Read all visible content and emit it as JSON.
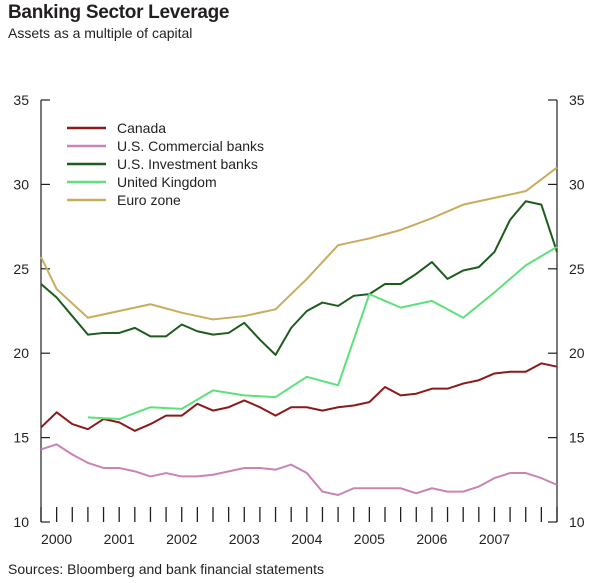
{
  "header": {
    "title": "Banking Sector Leverage",
    "subtitle": "Assets as a multiple of capital"
  },
  "footer": {
    "source": "Sources: Bloomberg and bank financial statements"
  },
  "chart_data": {
    "type": "line",
    "title": "Banking Sector Leverage",
    "subtitle": "Assets as a multiple of capital",
    "xlabel": "",
    "ylabel": "",
    "xlim": [
      1999.75,
      2008.0
    ],
    "ylim": [
      10,
      35
    ],
    "y_ticks": [
      10,
      15,
      20,
      25,
      30,
      35
    ],
    "x_tick_labels": [
      {
        "x": 2000.0,
        "label": "2000"
      },
      {
        "x": 2001.0,
        "label": "2001"
      },
      {
        "x": 2002.0,
        "label": "2002"
      },
      {
        "x": 2003.0,
        "label": "2003"
      },
      {
        "x": 2004.0,
        "label": "2004"
      },
      {
        "x": 2005.0,
        "label": "2005"
      },
      {
        "x": 2006.0,
        "label": "2006"
      },
      {
        "x": 2007.0,
        "label": "2007"
      }
    ],
    "legend_position": "top-left",
    "grid": false,
    "series": [
      {
        "name": "Canada",
        "color": "#8b1a1a",
        "points": [
          [
            1999.75,
            15.6
          ],
          [
            2000.0,
            16.5
          ],
          [
            2000.25,
            15.8
          ],
          [
            2000.5,
            15.5
          ],
          [
            2000.75,
            16.1
          ],
          [
            2001.0,
            15.9
          ],
          [
            2001.25,
            15.4
          ],
          [
            2001.5,
            15.8
          ],
          [
            2001.75,
            16.3
          ],
          [
            2002.0,
            16.3
          ],
          [
            2002.25,
            17.0
          ],
          [
            2002.5,
            16.6
          ],
          [
            2002.75,
            16.8
          ],
          [
            2003.0,
            17.2
          ],
          [
            2003.25,
            16.8
          ],
          [
            2003.5,
            16.3
          ],
          [
            2003.75,
            16.8
          ],
          [
            2004.0,
            16.8
          ],
          [
            2004.25,
            16.6
          ],
          [
            2004.5,
            16.8
          ],
          [
            2004.75,
            16.9
          ],
          [
            2005.0,
            17.1
          ],
          [
            2005.25,
            18.0
          ],
          [
            2005.5,
            17.5
          ],
          [
            2005.75,
            17.6
          ],
          [
            2006.0,
            17.9
          ],
          [
            2006.25,
            17.9
          ],
          [
            2006.5,
            18.2
          ],
          [
            2006.75,
            18.4
          ],
          [
            2007.0,
            18.8
          ],
          [
            2007.25,
            18.9
          ],
          [
            2007.5,
            18.9
          ],
          [
            2007.75,
            19.4
          ],
          [
            2008.0,
            19.2
          ]
        ]
      },
      {
        "name": "U.S. Commercial banks",
        "color": "#c983b5",
        "points": [
          [
            1999.75,
            14.3
          ],
          [
            2000.0,
            14.6
          ],
          [
            2000.25,
            14.0
          ],
          [
            2000.5,
            13.5
          ],
          [
            2000.75,
            13.2
          ],
          [
            2001.0,
            13.2
          ],
          [
            2001.25,
            13.0
          ],
          [
            2001.5,
            12.7
          ],
          [
            2001.75,
            12.9
          ],
          [
            2002.0,
            12.7
          ],
          [
            2002.25,
            12.7
          ],
          [
            2002.5,
            12.8
          ],
          [
            2002.75,
            13.0
          ],
          [
            2003.0,
            13.2
          ],
          [
            2003.25,
            13.2
          ],
          [
            2003.5,
            13.1
          ],
          [
            2003.75,
            13.4
          ],
          [
            2004.0,
            12.9
          ],
          [
            2004.25,
            11.8
          ],
          [
            2004.5,
            11.6
          ],
          [
            2004.75,
            12.0
          ],
          [
            2005.0,
            12.0
          ],
          [
            2005.25,
            12.0
          ],
          [
            2005.5,
            12.0
          ],
          [
            2005.75,
            11.7
          ],
          [
            2006.0,
            12.0
          ],
          [
            2006.25,
            11.8
          ],
          [
            2006.5,
            11.8
          ],
          [
            2006.75,
            12.1
          ],
          [
            2007.0,
            12.6
          ],
          [
            2007.25,
            12.9
          ],
          [
            2007.5,
            12.9
          ],
          [
            2007.75,
            12.6
          ],
          [
            2008.0,
            12.2
          ]
        ]
      },
      {
        "name": "U.S. Investment banks",
        "color": "#1e5c1e",
        "points": [
          [
            1999.75,
            24.1
          ],
          [
            2000.0,
            23.3
          ],
          [
            2000.25,
            22.2
          ],
          [
            2000.5,
            21.1
          ],
          [
            2000.75,
            21.2
          ],
          [
            2001.0,
            21.2
          ],
          [
            2001.25,
            21.5
          ],
          [
            2001.5,
            21.0
          ],
          [
            2001.75,
            21.0
          ],
          [
            2002.0,
            21.7
          ],
          [
            2002.25,
            21.3
          ],
          [
            2002.5,
            21.1
          ],
          [
            2002.75,
            21.2
          ],
          [
            2003.0,
            21.8
          ],
          [
            2003.25,
            20.8
          ],
          [
            2003.5,
            19.9
          ],
          [
            2003.75,
            21.5
          ],
          [
            2004.0,
            22.5
          ],
          [
            2004.25,
            23.0
          ],
          [
            2004.5,
            22.8
          ],
          [
            2004.75,
            23.4
          ],
          [
            2005.0,
            23.5
          ],
          [
            2005.25,
            24.1
          ],
          [
            2005.5,
            24.1
          ],
          [
            2005.75,
            24.7
          ],
          [
            2006.0,
            25.4
          ],
          [
            2006.25,
            24.4
          ],
          [
            2006.5,
            24.9
          ],
          [
            2006.75,
            25.1
          ],
          [
            2007.0,
            26.0
          ],
          [
            2007.25,
            27.9
          ],
          [
            2007.5,
            29.0
          ],
          [
            2007.75,
            28.8
          ],
          [
            2008.0,
            26.0
          ]
        ]
      },
      {
        "name": "United Kingdom",
        "color": "#5fe07a",
        "points": [
          [
            2000.5,
            16.2
          ],
          [
            2001.0,
            16.1
          ],
          [
            2001.5,
            16.8
          ],
          [
            2002.0,
            16.7
          ],
          [
            2002.5,
            17.8
          ],
          [
            2003.0,
            17.5
          ],
          [
            2003.5,
            17.4
          ],
          [
            2004.0,
            18.6
          ],
          [
            2004.5,
            18.1
          ],
          [
            2005.0,
            23.5
          ],
          [
            2005.5,
            22.7
          ],
          [
            2006.0,
            23.1
          ],
          [
            2006.5,
            22.1
          ],
          [
            2007.0,
            23.6
          ],
          [
            2007.5,
            25.2
          ],
          [
            2008.0,
            26.3
          ]
        ]
      },
      {
        "name": "Euro zone",
        "color": "#c9ac5c",
        "points": [
          [
            1999.75,
            25.7
          ],
          [
            2000.0,
            23.8
          ],
          [
            2000.5,
            22.1
          ],
          [
            2001.0,
            22.5
          ],
          [
            2001.5,
            22.9
          ],
          [
            2002.0,
            22.4
          ],
          [
            2002.5,
            22.0
          ],
          [
            2003.0,
            22.2
          ],
          [
            2003.5,
            22.6
          ],
          [
            2004.0,
            24.4
          ],
          [
            2004.5,
            26.4
          ],
          [
            2005.0,
            26.8
          ],
          [
            2005.5,
            27.3
          ],
          [
            2006.0,
            28.0
          ],
          [
            2006.5,
            28.8
          ],
          [
            2007.0,
            29.2
          ],
          [
            2007.5,
            29.6
          ],
          [
            2008.0,
            31.0
          ]
        ]
      }
    ]
  }
}
